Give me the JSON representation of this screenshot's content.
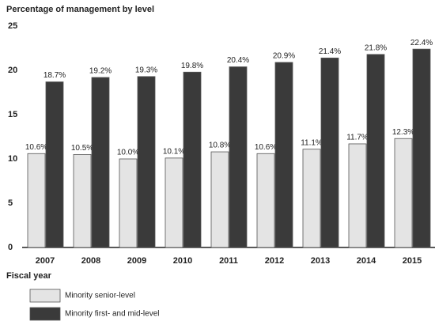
{
  "chart_data": {
    "type": "bar",
    "title": "Percentage of management by level",
    "x_label": "Fiscal year",
    "categories": [
      "2007",
      "2008",
      "2009",
      "2010",
      "2011",
      "2012",
      "2013",
      "2014",
      "2015"
    ],
    "series": [
      {
        "name": "Minority senior-level",
        "color": "#e4e4e4",
        "values": [
          10.6,
          10.5,
          10.0,
          10.1,
          10.8,
          10.6,
          11.1,
          11.7,
          12.3
        ],
        "value_labels": [
          "10.6%",
          "10.5%",
          "10.0%",
          "10.1%",
          "10.8%",
          "10.6%",
          "11.1%",
          "11.7%",
          "12.3%"
        ]
      },
      {
        "name": "Minority first- and mid-level",
        "color": "#3a3a3a",
        "values": [
          18.7,
          19.2,
          19.3,
          19.8,
          20.4,
          20.9,
          21.4,
          21.8,
          22.4
        ],
        "value_labels": [
          "18.7%",
          "19.2%",
          "19.3%",
          "19.8%",
          "20.4%",
          "20.9%",
          "21.4%",
          "21.8%",
          "22.4%"
        ]
      }
    ],
    "ylim": [
      0,
      25
    ],
    "yticks": [
      0,
      5,
      10,
      15,
      20,
      25
    ],
    "grid": false,
    "legend": "bottom"
  }
}
